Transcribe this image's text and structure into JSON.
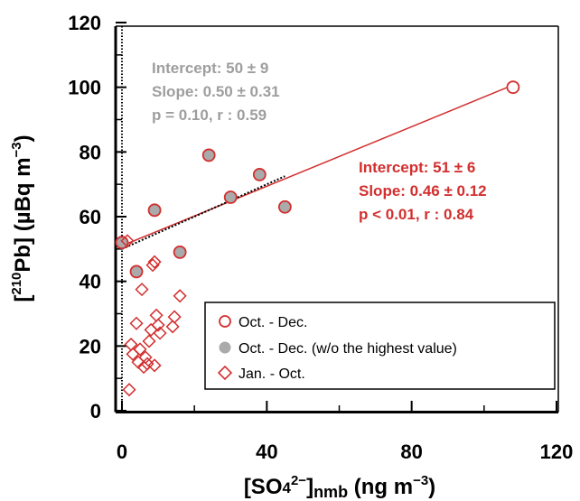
{
  "chart_data": {
    "type": "scatter",
    "x_axis": {
      "label": "[SO4²⁻]nmb (ng m⁻³)",
      "range": [
        0,
        120
      ],
      "ticks": [
        0,
        40,
        80,
        120
      ]
    },
    "y_axis": {
      "label": "[²¹⁰Pb] (µBq m⁻³)",
      "range": [
        0,
        120
      ],
      "ticks": [
        0,
        20,
        40,
        60,
        80,
        100,
        120
      ]
    },
    "grid": false,
    "legend_position": "bottom-right",
    "legend": [
      {
        "label": "Oct. - Dec.",
        "marker": "open-circle",
        "color": "#d32f2f"
      },
      {
        "label": "Oct. - Dec. (w/o the highest value)",
        "marker": "filled-circle",
        "color": "#aaaaaa"
      },
      {
        "label": "Jan. - Oct.",
        "marker": "open-diamond",
        "color": "#d32f2f"
      }
    ],
    "series": [
      {
        "name": "Oct. - Dec.",
        "marker": "circle",
        "x": [
          0,
          4,
          9,
          16,
          24,
          30,
          38,
          45,
          108
        ],
        "y": [
          52,
          43,
          62,
          49,
          79,
          66,
          73,
          63,
          100
        ]
      },
      {
        "name": "Jan. - Oct.",
        "marker": "diamond",
        "x": [
          1.5,
          2,
          2.5,
          3,
          4,
          4.5,
          5,
          5.5,
          6,
          6.5,
          7,
          7.5,
          8,
          8.5,
          9,
          9,
          9.5,
          10,
          10.5,
          14,
          14.5,
          16
        ],
        "y": [
          52.5,
          6.5,
          20.5,
          17.5,
          27,
          15,
          19,
          37.5,
          13.5,
          16.5,
          14.5,
          21.5,
          25,
          45,
          14,
          46,
          29.5,
          26.5,
          24,
          26,
          29,
          35.5
        ]
      }
    ],
    "fits": [
      {
        "applies_to": "Oct. - Dec.",
        "style": "solid",
        "color": "#d32f2f",
        "intercept": 51,
        "slope": 0.46,
        "x_range": [
          0,
          108
        ],
        "labels": [
          "Intercept: 51 ± 6",
          "Slope: 0.46 ± 0.12",
          "p < 0.01,  r : 0.84"
        ]
      },
      {
        "applies_to": "Oct. - Dec. (w/o the highest value)",
        "style": "dotted",
        "color": "#000000",
        "intercept": 50,
        "slope": 0.5,
        "x_range": [
          0,
          45
        ],
        "labels": [
          "Intercept: 50 ± 9",
          "Slope: 0.50 ± 0.31",
          "p = 0.10,  r : 0.59"
        ]
      }
    ],
    "x_zero_line": true,
    "colors": {
      "red": "#d32f2f",
      "gray_fill": "#aaaaaa",
      "gray_text": "#9e9e9e"
    }
  }
}
